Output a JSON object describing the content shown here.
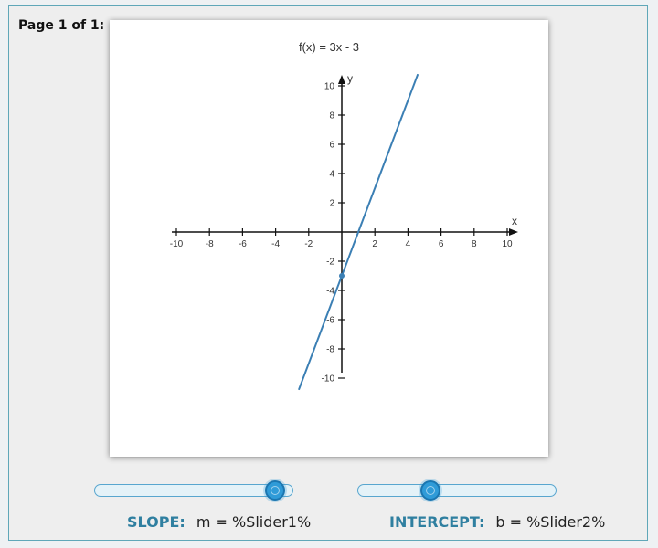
{
  "page": {
    "label": "Page 1 of 1:"
  },
  "graph": {
    "title": "f(x) = 3x - 3",
    "xlabel": "x",
    "ylabel": "y",
    "line_color": "#3b7fb4",
    "chart_data": {
      "type": "line",
      "function": "3x - 3",
      "slope": 3,
      "intercept": -3,
      "x": [
        -2.6,
        4.6
      ],
      "y": [
        -10.8,
        10.8
      ],
      "xlim": [
        -10,
        10
      ],
      "ylim": [
        -10,
        10
      ],
      "x_ticks": [
        "-10",
        "-8",
        "-6",
        "-4",
        "-2",
        "2",
        "4",
        "6",
        "8",
        "10"
      ],
      "y_ticks": [
        "10",
        "8",
        "6",
        "4",
        "2",
        "-2",
        "-4",
        "-6",
        "-8",
        "-10"
      ],
      "marked_point": {
        "x": 0,
        "y": -3
      },
      "grid": false
    }
  },
  "controls": {
    "slope": {
      "label": "SLOPE:",
      "formula": "m = %Slider1%",
      "value": 0.96
    },
    "intercept": {
      "label": "INTERCEPT:",
      "formula": "b = %Slider2%",
      "value": 0.35
    }
  },
  "colors": {
    "accent": "#2f7fa0",
    "slider_fill": "#e4f2f8",
    "knob": "#2f9bd8"
  }
}
